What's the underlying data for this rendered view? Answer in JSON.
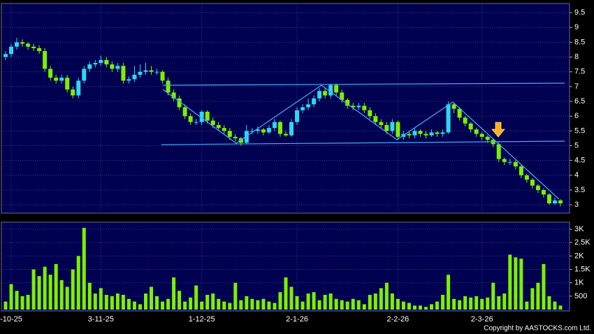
{
  "chart_data": {
    "type": "candlestick",
    "categories": [
      null,
      "-10-25",
      null,
      null,
      null,
      null,
      null,
      null,
      null,
      null,
      null,
      null,
      null,
      null,
      null,
      null,
      null,
      "3-11-25",
      null,
      null,
      null,
      null,
      null,
      null,
      null,
      null,
      null,
      null,
      null,
      null,
      null,
      null,
      null,
      null,
      null,
      "1-12-25",
      null,
      null,
      null,
      null,
      null,
      null,
      null,
      null,
      null,
      null,
      null,
      null,
      null,
      null,
      null,
      null,
      "2-1-26",
      null,
      null,
      null,
      null,
      null,
      null,
      null,
      null,
      null,
      null,
      null,
      null,
      null,
      null,
      null,
      null,
      null,
      "2-2-26",
      null,
      null,
      null,
      null,
      null,
      null,
      null,
      null,
      null,
      null,
      null,
      null,
      null,
      null,
      "2-3-26",
      null,
      null,
      null,
      null,
      null,
      null,
      null,
      null,
      null,
      null,
      null,
      null,
      null,
      null
    ],
    "open": [
      8.0,
      8.1,
      8.35,
      8.5,
      8.45,
      8.35,
      8.3,
      8.2,
      7.6,
      7.3,
      7.2,
      7.3,
      6.9,
      6.7,
      7.2,
      7.6,
      7.75,
      7.8,
      7.9,
      7.75,
      7.6,
      7.7,
      7.2,
      7.25,
      7.4,
      7.5,
      7.55,
      7.5,
      7.5,
      7.2,
      6.8,
      6.6,
      6.3,
      6.0,
      5.8,
      5.8,
      6.15,
      5.85,
      5.7,
      5.6,
      5.5,
      5.3,
      5.25,
      5.1,
      5.5,
      5.5,
      5.55,
      5.45,
      5.6,
      5.8,
      5.4,
      5.35,
      5.8,
      6.2,
      6.3,
      6.4,
      6.6,
      6.85,
      6.7,
      7.05,
      6.8,
      6.55,
      6.35,
      6.3,
      6.35,
      6.2,
      6.0,
      5.8,
      5.7,
      5.5,
      5.8,
      5.3,
      5.4,
      5.35,
      5.5,
      5.4,
      5.35,
      5.45,
      5.4,
      5.45,
      6.4,
      6.25,
      5.95,
      5.75,
      5.55,
      5.4,
      5.3,
      5.2,
      5.05,
      4.55,
      4.45,
      4.45,
      4.3,
      4.0,
      3.85,
      3.65,
      3.5,
      3.35,
      3.05,
      3.15
    ],
    "high": [
      8.2,
      8.45,
      8.65,
      8.6,
      8.5,
      8.45,
      8.4,
      8.3,
      7.7,
      7.4,
      7.4,
      7.4,
      7.0,
      7.3,
      7.7,
      7.85,
      7.9,
      8.05,
      8.0,
      7.85,
      7.8,
      7.8,
      7.35,
      7.7,
      7.75,
      7.8,
      7.7,
      7.6,
      7.55,
      7.3,
      6.9,
      6.7,
      6.4,
      6.1,
      5.9,
      6.2,
      6.2,
      5.95,
      5.8,
      5.7,
      5.6,
      5.4,
      5.3,
      5.7,
      5.6,
      5.65,
      5.6,
      5.7,
      5.9,
      5.85,
      5.5,
      5.9,
      6.3,
      6.4,
      6.6,
      6.7,
      6.95,
      6.95,
      7.1,
      7.1,
      6.9,
      6.6,
      6.45,
      6.45,
      6.45,
      6.3,
      6.1,
      5.9,
      5.8,
      5.9,
      5.85,
      5.5,
      5.5,
      5.6,
      5.55,
      5.5,
      5.55,
      5.5,
      5.55,
      6.5,
      6.45,
      6.3,
      6.0,
      5.8,
      5.6,
      5.45,
      5.35,
      5.25,
      5.1,
      4.6,
      4.55,
      4.5,
      4.35,
      4.05,
      3.9,
      3.7,
      3.55,
      3.4,
      3.25,
      3.2
    ],
    "low": [
      7.9,
      8.0,
      8.25,
      8.35,
      8.25,
      8.2,
      8.1,
      7.5,
      7.2,
      7.1,
      7.1,
      6.8,
      6.6,
      6.6,
      7.1,
      7.5,
      7.65,
      7.7,
      7.65,
      7.5,
      7.5,
      7.1,
      7.1,
      7.15,
      7.3,
      7.4,
      7.4,
      7.4,
      7.1,
      6.7,
      6.5,
      6.2,
      5.9,
      5.7,
      5.7,
      5.7,
      5.75,
      5.6,
      5.5,
      5.4,
      5.2,
      5.15,
      5.0,
      5.05,
      5.4,
      5.4,
      5.35,
      5.4,
      5.5,
      5.3,
      5.3,
      5.3,
      5.7,
      6.1,
      6.2,
      6.3,
      6.5,
      6.6,
      6.6,
      6.7,
      6.45,
      6.25,
      6.2,
      6.2,
      6.1,
      5.9,
      5.7,
      5.6,
      5.4,
      5.4,
      5.2,
      5.2,
      5.25,
      5.25,
      5.3,
      5.25,
      5.3,
      5.3,
      5.3,
      5.4,
      6.1,
      5.85,
      5.65,
      5.45,
      5.3,
      5.2,
      5.1,
      4.95,
      4.45,
      4.35,
      4.35,
      4.2,
      3.9,
      3.75,
      3.55,
      3.4,
      3.25,
      3.0,
      3.0,
      2.95
    ],
    "close": [
      8.1,
      8.35,
      8.5,
      8.45,
      8.35,
      8.3,
      8.2,
      7.6,
      7.3,
      7.2,
      7.3,
      6.9,
      6.7,
      7.2,
      7.6,
      7.75,
      7.8,
      7.9,
      7.75,
      7.6,
      7.7,
      7.2,
      7.25,
      7.4,
      7.5,
      7.55,
      7.5,
      7.5,
      7.2,
      6.8,
      6.6,
      6.3,
      6.0,
      5.8,
      5.8,
      6.15,
      5.85,
      5.7,
      5.6,
      5.5,
      5.3,
      5.25,
      5.1,
      5.5,
      5.5,
      5.55,
      5.45,
      5.6,
      5.8,
      5.4,
      5.35,
      5.8,
      6.2,
      6.3,
      6.4,
      6.6,
      6.85,
      6.7,
      7.05,
      6.8,
      6.55,
      6.35,
      6.3,
      6.35,
      6.2,
      6.0,
      5.8,
      5.7,
      5.5,
      5.8,
      5.3,
      5.4,
      5.35,
      5.5,
      5.4,
      5.35,
      5.45,
      5.4,
      5.45,
      6.4,
      6.25,
      5.95,
      5.75,
      5.55,
      5.4,
      5.3,
      5.2,
      5.05,
      4.55,
      4.45,
      4.45,
      4.3,
      4.0,
      3.85,
      3.65,
      3.5,
      3.35,
      3.05,
      3.15,
      3.05
    ],
    "up_color": "#2fd6f5",
    "down_color": "#7cf000",
    "ylim": [
      2.72,
      9.81
    ],
    "yticks": [
      3,
      3.5,
      4,
      4.5,
      5,
      5.5,
      6,
      6.5,
      7,
      7.5,
      8,
      8.5,
      9,
      9.5
    ],
    "grid": true,
    "volume": {
      "type": "bar",
      "values": [
        300,
        950,
        700,
        500,
        550,
        1500,
        1250,
        1600,
        1300,
        1700,
        1100,
        850,
        1500,
        2000,
        3050,
        1000,
        600,
        800,
        550,
        500,
        600,
        550,
        400,
        300,
        200,
        600,
        850,
        500,
        300,
        400,
        1200,
        700,
        300,
        450,
        900,
        300,
        550,
        600,
        400,
        300,
        250,
        1000,
        350,
        500,
        400,
        350,
        400,
        300,
        250,
        650,
        1200,
        850,
        500,
        300,
        600,
        650,
        350,
        550,
        600,
        400,
        350,
        300,
        400,
        350,
        200,
        550,
        600,
        800,
        1000,
        600,
        400,
        300,
        250,
        150,
        150,
        100,
        200,
        300,
        550,
        1300,
        400,
        350,
        500,
        450,
        500,
        400,
        450,
        1000,
        500,
        600,
        2050,
        1950,
        1900,
        300,
        800,
        1000,
        1700,
        500,
        300,
        150
      ],
      "color": "#7cf000",
      "ylim": [
        -50,
        3260
      ],
      "yticks": [
        500,
        {
          "value": 1000,
          "label": "1K"
        },
        {
          "value": 1500,
          "label": "1.5K"
        },
        {
          "value": 2000,
          "label": "2K"
        },
        {
          "value": 2500,
          "label": "2.5K"
        },
        {
          "value": 3000,
          "label": "3K"
        }
      ]
    },
    "credit": "Copyright by AASTOCKS.com Ltd."
  }
}
